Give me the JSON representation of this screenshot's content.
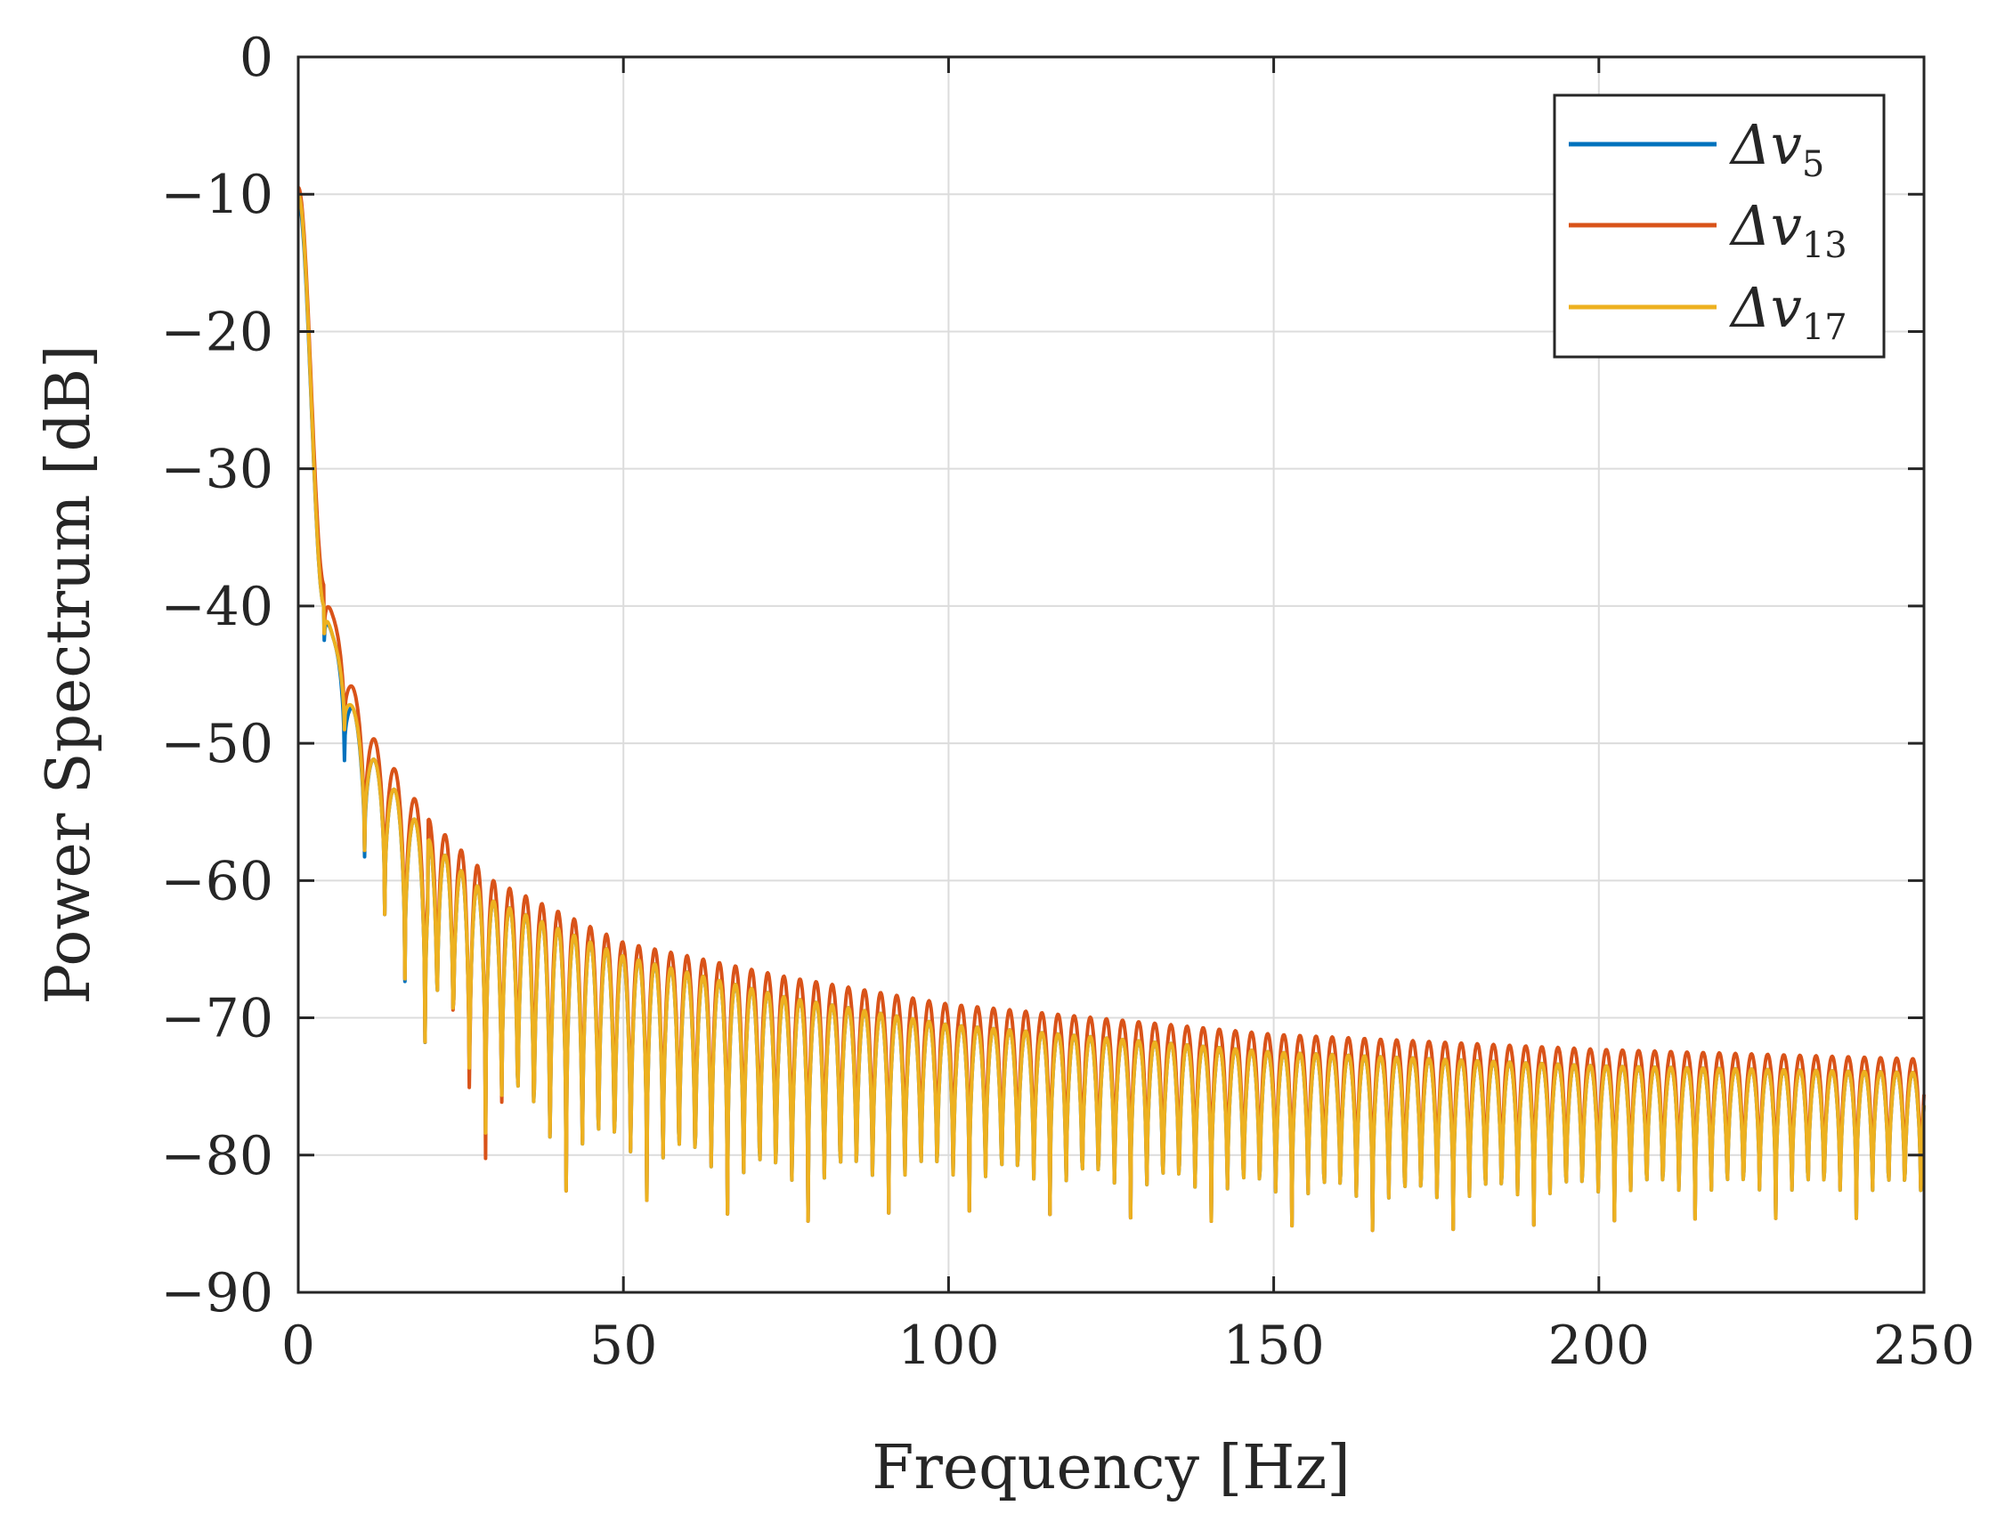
{
  "chart_data": {
    "type": "line",
    "title": "",
    "xlabel": "Frequency [Hz]",
    "ylabel": "Power Spectrum [dB]",
    "xlim": [
      0,
      250
    ],
    "ylim": [
      -90,
      0
    ],
    "grid": true,
    "legend_position": "top-right",
    "x_ticks": [
      0,
      50,
      100,
      150,
      200,
      250
    ],
    "x_tick_labels": [
      "0",
      "50",
      "100",
      "150",
      "200",
      "250"
    ],
    "y_ticks": [
      0,
      -10,
      -20,
      -30,
      -40,
      -50,
      -60,
      -70,
      -80,
      -90
    ],
    "y_tick_labels": [
      "0",
      "−10",
      "−20",
      "−30",
      "−40",
      "−50",
      "−60",
      "−70",
      "−80",
      "−90"
    ],
    "series": [
      {
        "name": "Δv5",
        "legend_main": "Δv",
        "legend_sub": "5",
        "color": "#0072BD",
        "peak_offset_db": 0.0,
        "envelope_peaks": [
          [
            0,
            -10.5
          ],
          [
            4,
            -40
          ],
          [
            7,
            -45
          ],
          [
            10,
            -50
          ],
          [
            20,
            -57
          ],
          [
            30,
            -61.5
          ],
          [
            50,
            -65.5
          ],
          [
            75,
            -68.5
          ],
          [
            100,
            -70.5
          ],
          [
            150,
            -72.5
          ],
          [
            200,
            -73.5
          ],
          [
            250,
            -74
          ]
        ],
        "notch_minima": [
          [
            5,
            -42.5
          ],
          [
            8,
            -55
          ],
          [
            10,
            -58
          ],
          [
            13,
            -62
          ],
          [
            16.5,
            -67.5
          ],
          [
            20,
            -72.5
          ],
          [
            22.5,
            -71
          ],
          [
            27,
            -78
          ],
          [
            34,
            -79.5
          ],
          [
            39,
            -82.5
          ],
          [
            50,
            -83
          ],
          [
            75,
            -85
          ],
          [
            87,
            -84.3
          ],
          [
            100,
            -84
          ],
          [
            140,
            -84.8
          ],
          [
            170,
            -85.6
          ],
          [
            205,
            -84.7
          ],
          [
            225,
            -84.6
          ],
          [
            250,
            -84.6
          ]
        ]
      },
      {
        "name": "Δv13",
        "legend_main": "Δv",
        "legend_sub": "13",
        "color": "#D95319",
        "peak_offset_db": 1.2,
        "envelope_peaks": [
          [
            0,
            -9.5
          ],
          [
            4,
            -38.5
          ],
          [
            7,
            -43.5
          ],
          [
            10,
            -48.5
          ],
          [
            20,
            -55.5
          ],
          [
            30,
            -60
          ],
          [
            50,
            -64.5
          ],
          [
            75,
            -67
          ],
          [
            100,
            -69
          ],
          [
            150,
            -71.2
          ],
          [
            200,
            -72.3
          ],
          [
            250,
            -73
          ]
        ],
        "notch_minima": [
          [
            5,
            -42
          ],
          [
            8,
            -52
          ],
          [
            10,
            -57.5
          ],
          [
            13,
            -62
          ],
          [
            16.5,
            -67.3
          ],
          [
            20,
            -72.5
          ],
          [
            22.5,
            -71
          ],
          [
            27,
            -80.5
          ],
          [
            34,
            -79.5
          ],
          [
            39,
            -82.5
          ],
          [
            50,
            -83
          ],
          [
            75,
            -85
          ],
          [
            87,
            -84.3
          ],
          [
            100,
            -84
          ],
          [
            140,
            -84.8
          ],
          [
            170,
            -85.6
          ],
          [
            205,
            -84.7
          ],
          [
            225,
            -84.6
          ],
          [
            250,
            -84.6
          ]
        ]
      },
      {
        "name": "Δv17",
        "legend_main": "Δv",
        "legend_sub": "17",
        "color": "#EDB120",
        "peak_offset_db": 0.0,
        "envelope_peaks": [
          [
            0,
            -10
          ],
          [
            4,
            -40
          ],
          [
            7,
            -45
          ],
          [
            10,
            -50
          ],
          [
            20,
            -57
          ],
          [
            30,
            -61.5
          ],
          [
            50,
            -65.5
          ],
          [
            75,
            -68.5
          ],
          [
            100,
            -70.5
          ],
          [
            150,
            -72.5
          ],
          [
            200,
            -73.5
          ],
          [
            250,
            -74
          ]
        ],
        "notch_minima": [
          [
            5,
            -42
          ],
          [
            8,
            -52
          ],
          [
            10,
            -57.5
          ],
          [
            13,
            -62
          ],
          [
            16.5,
            -67.3
          ],
          [
            20,
            -72.5
          ],
          [
            22.5,
            -71
          ],
          [
            27,
            -78
          ],
          [
            34,
            -79.5
          ],
          [
            39,
            -82.5
          ],
          [
            50,
            -83
          ],
          [
            75,
            -85
          ],
          [
            87,
            -84.3
          ],
          [
            100,
            -84
          ],
          [
            140,
            -84.8
          ],
          [
            170,
            -85.6
          ],
          [
            205,
            -84.7
          ],
          [
            225,
            -84.6
          ],
          [
            250,
            -84.6
          ]
        ]
      }
    ]
  }
}
